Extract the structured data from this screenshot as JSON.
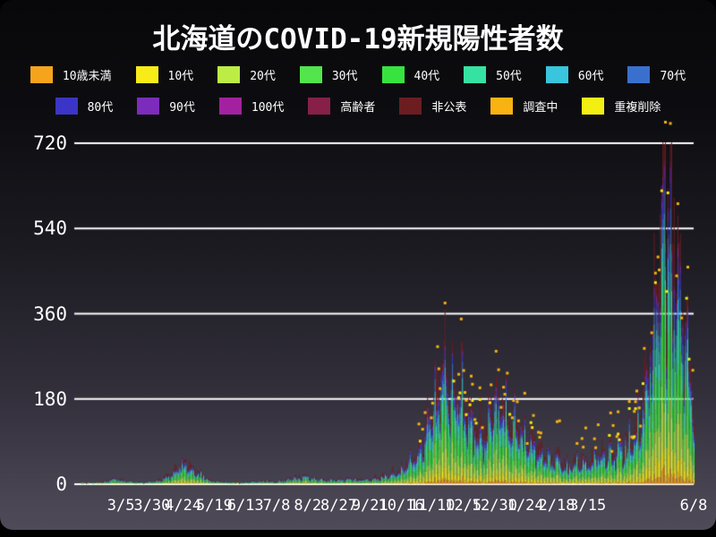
{
  "window": {
    "title": "北海道のCOVID-19新規陽性者数"
  },
  "legend": {
    "row1": [
      {
        "label": "10歳未満",
        "color": "#f6a41c"
      },
      {
        "label": "10代",
        "color": "#f8ec18"
      },
      {
        "label": "20代",
        "color": "#bdec44"
      },
      {
        "label": "30代",
        "color": "#52e54c"
      },
      {
        "label": "40代",
        "color": "#37e33e"
      },
      {
        "label": "50代",
        "color": "#35e2a2"
      },
      {
        "label": "60代",
        "color": "#38c5dd"
      },
      {
        "label": "70代",
        "color": "#3a70cd"
      }
    ],
    "row2": [
      {
        "label": "80代",
        "color": "#3a35c6"
      },
      {
        "label": "90代",
        "color": "#7c2cba"
      },
      {
        "label": "100代",
        "color": "#a321a0"
      },
      {
        "label": "高齢者",
        "color": "#872048"
      },
      {
        "label": "非公表",
        "color": "#6b1d20"
      },
      {
        "label": "調査中",
        "color": "#f8b312"
      },
      {
        "label": "重複削除",
        "color": "#f3ef13"
      }
    ]
  },
  "chart_data": {
    "type": "bar",
    "stacked": true,
    "title": "北海道のCOVID-19新規陽性者数",
    "xlabel": "",
    "ylabel": "",
    "start_date": "2020-01-29",
    "end_date": "2021-06-08",
    "days_total": 496,
    "y_ticks": [
      0,
      180,
      360,
      540,
      720
    ],
    "ylim": [
      0,
      740
    ],
    "grid": "horizontal",
    "grid_color": "#ffffff",
    "text_color": "#ffffff",
    "legend_position": "top",
    "x_ticks": [
      {
        "label": "3/5",
        "day": 36
      },
      {
        "label": "3/30",
        "day": 61
      },
      {
        "label": "4/24",
        "day": 86
      },
      {
        "label": "5/19",
        "day": 111
      },
      {
        "label": "6/13",
        "day": 136
      },
      {
        "label": "7/8",
        "day": 161
      },
      {
        "label": "8/2",
        "day": 186
      },
      {
        "label": "8/27",
        "day": 211
      },
      {
        "label": "9/21",
        "day": 236
      },
      {
        "label": "10/16",
        "day": 261
      },
      {
        "label": "11/10",
        "day": 286
      },
      {
        "label": "12/5",
        "day": 311
      },
      {
        "label": "12/30",
        "day": 336
      },
      {
        "label": "1/24",
        "day": 361
      },
      {
        "label": "2/18",
        "day": 386
      },
      {
        "label": "3/15",
        "day": 411
      },
      {
        "label": "6/8",
        "day": 496
      }
    ],
    "series": [
      {
        "name": "10歳未満",
        "color": "#f6a41c",
        "share": 0.035
      },
      {
        "name": "10代",
        "color": "#f8ec18",
        "share": 0.075
      },
      {
        "name": "20代",
        "color": "#bdec44",
        "share": 0.155
      },
      {
        "name": "30代",
        "color": "#52e54c",
        "share": 0.125
      },
      {
        "name": "40代",
        "color": "#37e33e",
        "share": 0.135
      },
      {
        "name": "50代",
        "color": "#35e2a2",
        "share": 0.125
      },
      {
        "name": "60代",
        "color": "#38c5dd",
        "share": 0.095
      },
      {
        "name": "70代",
        "color": "#3a70cd",
        "share": 0.07
      },
      {
        "name": "80代",
        "color": "#3a35c6",
        "share": 0.055
      },
      {
        "name": "90代",
        "color": "#7c2cba",
        "share": 0.027
      },
      {
        "name": "100代",
        "color": "#a321a0",
        "share": 0.004
      },
      {
        "name": "高齢者",
        "color": "#872048",
        "share": 0.014
      },
      {
        "name": "非公表",
        "color": "#6b1d20",
        "share": 0.085
      }
    ],
    "scatter_series": [
      {
        "name": "調査中",
        "color": "#f8b312"
      },
      {
        "name": "重複削除",
        "color": "#f3ef13"
      }
    ],
    "peak": {
      "day": 472,
      "value": 718
    },
    "daily_total_keypoints": [
      [
        0,
        0
      ],
      [
        5,
        1
      ],
      [
        10,
        2
      ],
      [
        16,
        3
      ],
      [
        22,
        6
      ],
      [
        28,
        10
      ],
      [
        33,
        13
      ],
      [
        36,
        10
      ],
      [
        40,
        7
      ],
      [
        45,
        5
      ],
      [
        50,
        4
      ],
      [
        56,
        5
      ],
      [
        61,
        7
      ],
      [
        68,
        11
      ],
      [
        75,
        22
      ],
      [
        80,
        34
      ],
      [
        84,
        42
      ],
      [
        88,
        44
      ],
      [
        92,
        38
      ],
      [
        96,
        30
      ],
      [
        100,
        22
      ],
      [
        105,
        14
      ],
      [
        110,
        9
      ],
      [
        116,
        6
      ],
      [
        122,
        4
      ],
      [
        128,
        3
      ],
      [
        136,
        4
      ],
      [
        144,
        6
      ],
      [
        152,
        8
      ],
      [
        158,
        6
      ],
      [
        164,
        7
      ],
      [
        170,
        11
      ],
      [
        176,
        15
      ],
      [
        182,
        17
      ],
      [
        188,
        15
      ],
      [
        194,
        12
      ],
      [
        200,
        10
      ],
      [
        206,
        9
      ],
      [
        212,
        10
      ],
      [
        218,
        13
      ],
      [
        224,
        11
      ],
      [
        230,
        12
      ],
      [
        236,
        14
      ],
      [
        242,
        16
      ],
      [
        248,
        20
      ],
      [
        254,
        26
      ],
      [
        259,
        32
      ],
      [
        263,
        40
      ],
      [
        267,
        50
      ],
      [
        271,
        62
      ],
      [
        275,
        80
      ],
      [
        279,
        105
      ],
      [
        283,
        145
      ],
      [
        287,
        190
      ],
      [
        291,
        230
      ],
      [
        295,
        255
      ],
      [
        299,
        245
      ],
      [
        303,
        225
      ],
      [
        307,
        215
      ],
      [
        311,
        205
      ],
      [
        315,
        175
      ],
      [
        319,
        148
      ],
      [
        323,
        130
      ],
      [
        327,
        130
      ],
      [
        331,
        152
      ],
      [
        335,
        170
      ],
      [
        339,
        182
      ],
      [
        343,
        172
      ],
      [
        347,
        160
      ],
      [
        351,
        145
      ],
      [
        355,
        132
      ],
      [
        359,
        122
      ],
      [
        363,
        105
      ],
      [
        367,
        88
      ],
      [
        371,
        74
      ],
      [
        376,
        64
      ],
      [
        381,
        60
      ],
      [
        386,
        58
      ],
      [
        391,
        48
      ],
      [
        396,
        44
      ],
      [
        401,
        52
      ],
      [
        406,
        58
      ],
      [
        411,
        55
      ],
      [
        416,
        60
      ],
      [
        421,
        66
      ],
      [
        426,
        69
      ],
      [
        431,
        73
      ],
      [
        436,
        85
      ],
      [
        441,
        100
      ],
      [
        446,
        118
      ],
      [
        450,
        140
      ],
      [
        454,
        175
      ],
      [
        458,
        230
      ],
      [
        461,
        295
      ],
      [
        464,
        370
      ],
      [
        467,
        470
      ],
      [
        469,
        560
      ],
      [
        471,
        665
      ],
      [
        472,
        712
      ],
      [
        474,
        650
      ],
      [
        476,
        590
      ],
      [
        478,
        605
      ],
      [
        480,
        530
      ],
      [
        482,
        478
      ],
      [
        484,
        430
      ],
      [
        487,
        360
      ],
      [
        490,
        305
      ],
      [
        493,
        245
      ],
      [
        496,
        195
      ]
    ]
  }
}
